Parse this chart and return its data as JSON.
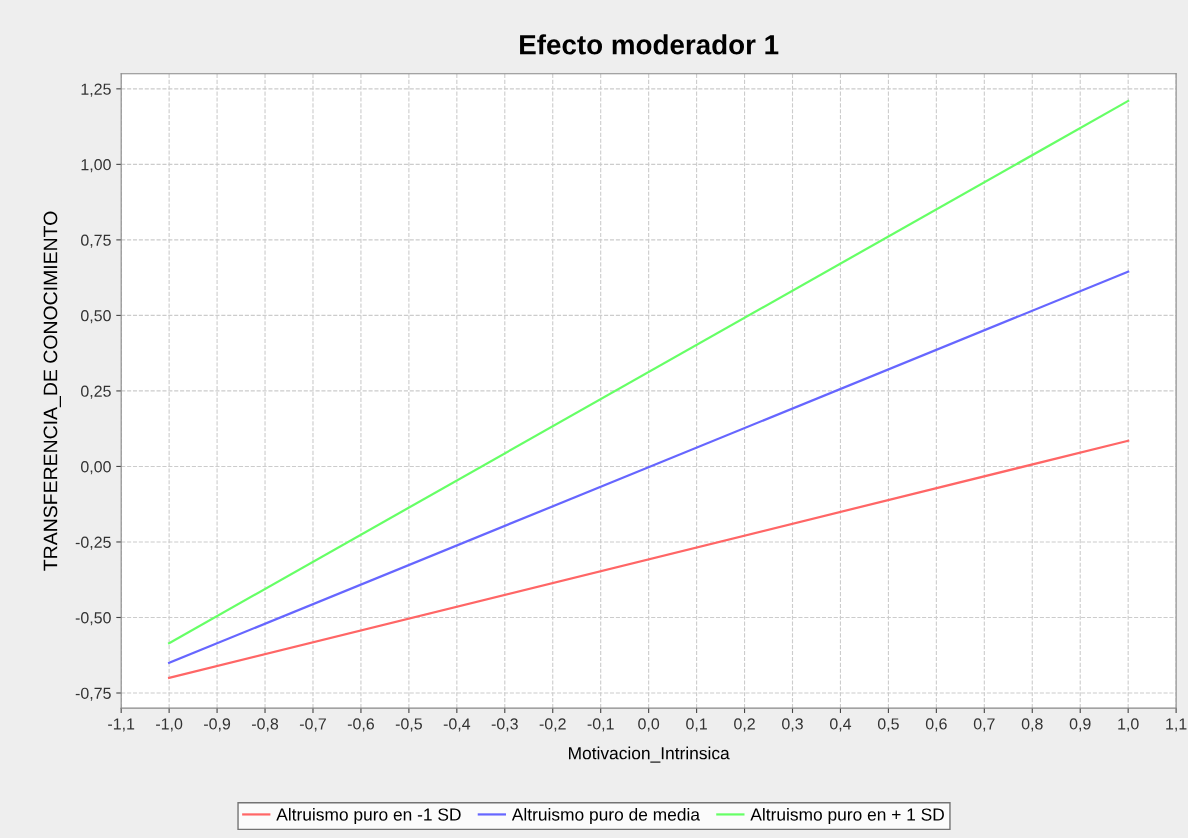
{
  "chart_data": {
    "type": "line",
    "title": "Efecto moderador 1",
    "xlabel": "Motivacion_Intrinsica",
    "ylabel": "TRANSFERENCIA_DE CONOCIMIENTO",
    "x": [
      -1.0,
      1.0
    ],
    "series": [
      {
        "name": "Altruismo puro en -1 SD",
        "color": "#ff6666",
        "values": [
          -0.7,
          0.085
        ]
      },
      {
        "name": "Altruismo puro de media",
        "color": "#6666ff",
        "values": [
          -0.65,
          0.645
        ]
      },
      {
        "name": "Altruismo puro en + 1 SD",
        "color": "#66ff66",
        "values": [
          -0.585,
          1.21
        ]
      }
    ],
    "xlim": [
      -1.1,
      1.1
    ],
    "ylim": [
      -0.8,
      1.3
    ],
    "xticks": [
      {
        "value": -1.1,
        "label": "-1,1"
      },
      {
        "value": -1.0,
        "label": "-1,0"
      },
      {
        "value": -0.9,
        "label": "-0,9"
      },
      {
        "value": -0.8,
        "label": "-0,8"
      },
      {
        "value": -0.7,
        "label": "-0,7"
      },
      {
        "value": -0.6,
        "label": "-0,6"
      },
      {
        "value": -0.5,
        "label": "-0,5"
      },
      {
        "value": -0.4,
        "label": "-0,4"
      },
      {
        "value": -0.3,
        "label": "-0,3"
      },
      {
        "value": -0.2,
        "label": "-0,2"
      },
      {
        "value": -0.1,
        "label": "-0,1"
      },
      {
        "value": 0.0,
        "label": "0,0"
      },
      {
        "value": 0.1,
        "label": "0,1"
      },
      {
        "value": 0.2,
        "label": "0,2"
      },
      {
        "value": 0.3,
        "label": "0,3"
      },
      {
        "value": 0.4,
        "label": "0,4"
      },
      {
        "value": 0.5,
        "label": "0,5"
      },
      {
        "value": 0.6,
        "label": "0,6"
      },
      {
        "value": 0.7,
        "label": "0,7"
      },
      {
        "value": 0.8,
        "label": "0,8"
      },
      {
        "value": 0.9,
        "label": "0,9"
      },
      {
        "value": 1.0,
        "label": "1,0"
      },
      {
        "value": 1.1,
        "label": "1,1"
      }
    ],
    "yticks": [
      {
        "value": -0.75,
        "label": "-0,75"
      },
      {
        "value": -0.5,
        "label": "-0,50"
      },
      {
        "value": -0.25,
        "label": "-0,25"
      },
      {
        "value": 0.0,
        "label": "0,00"
      },
      {
        "value": 0.25,
        "label": "0,25"
      },
      {
        "value": 0.5,
        "label": "0,50"
      },
      {
        "value": 0.75,
        "label": "0,75"
      },
      {
        "value": 1.0,
        "label": "1,00"
      },
      {
        "value": 1.25,
        "label": "1,25"
      }
    ],
    "grid": true,
    "legend": "bottom",
    "marker": "none",
    "line_style": "solid"
  }
}
